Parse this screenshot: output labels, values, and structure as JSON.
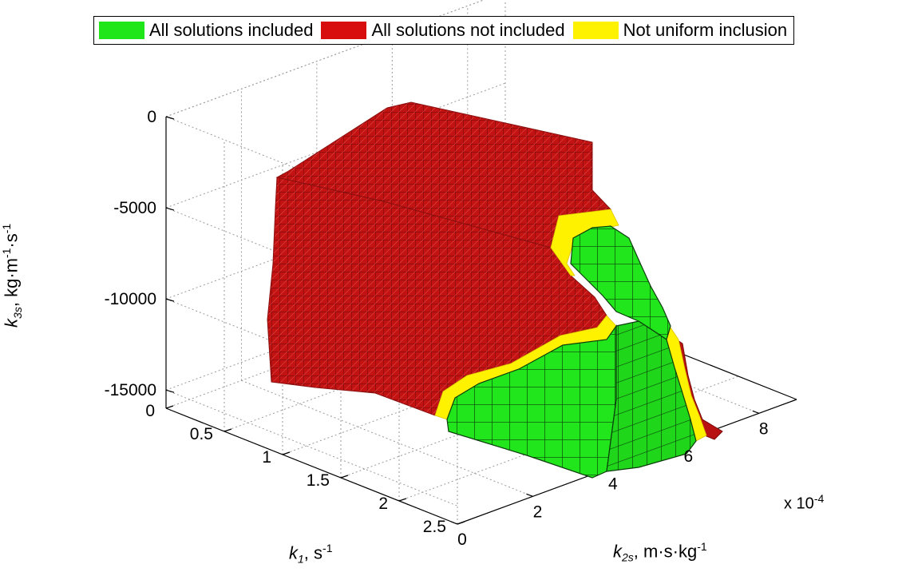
{
  "chart_data": {
    "type": "scatter3d-voxels",
    "legend": [
      {
        "label": "All solutions included",
        "color": "#1ee619"
      },
      {
        "label": "All solutions not included",
        "color": "#d80d0d"
      },
      {
        "label": "Not uniform inclusion",
        "color": "#fff200"
      }
    ],
    "axes": {
      "k1": {
        "label": "k",
        "label_sub": "1",
        "label_unit": ", s",
        "label_sup": "-1",
        "ticks": [
          "0",
          "0.5",
          "1",
          "1.5",
          "2",
          "2.5"
        ],
        "range": [
          0,
          2.5
        ]
      },
      "k2s": {
        "label": "k",
        "label_sub": "2s",
        "label_unit": ", m·s·kg",
        "label_sup": "-1",
        "ticks": [
          "0",
          "2",
          "4",
          "6",
          "8"
        ],
        "range": [
          0,
          9
        ],
        "multiplier_text": "x 10",
        "multiplier_exp": "-4"
      },
      "k3s": {
        "label": "k",
        "label_sub": "3s",
        "label_unit": ", kg·m",
        "label_sup1": "-1",
        "label_unit2": "·s",
        "label_sup2": "-1",
        "ticks": [
          "0",
          "-5000",
          "-10000",
          "-15000"
        ],
        "range": [
          -16000,
          0
        ]
      }
    },
    "grid": true,
    "legend_position": "top"
  }
}
